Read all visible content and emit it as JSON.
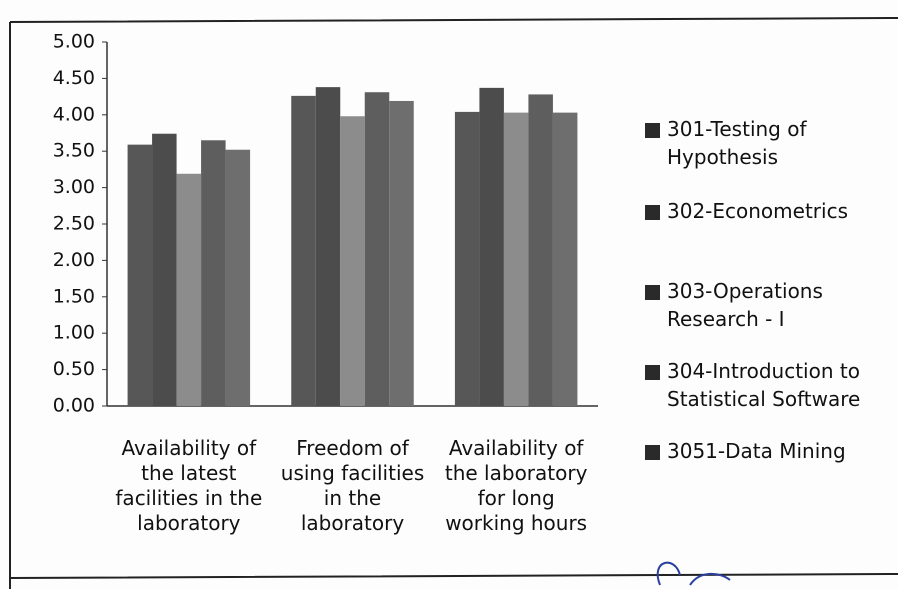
{
  "chart_data": {
    "type": "bar",
    "categories": [
      "Availability of\nthe latest\nfacilities in the\nlaboratory",
      "Freedom of\nusing facilities\nin the\nlaboratory",
      "Availability of\nthe laboratory\nfor long\nworking hours"
    ],
    "series": [
      {
        "name": "301-Testing of\nHypothesis",
        "color": "#575757",
        "values": [
          3.59,
          4.26,
          4.04
        ]
      },
      {
        "name": "302-Econometrics",
        "color": "#4c4c4c",
        "values": [
          3.74,
          4.38,
          4.37
        ]
      },
      {
        "name": "303-Operations\nResearch - I",
        "color": "#8c8c8c",
        "values": [
          3.19,
          3.98,
          4.03
        ]
      },
      {
        "name": "304-Introduction to\nStatistical Software",
        "color": "#5e5e5e",
        "values": [
          3.65,
          4.31,
          4.28
        ]
      },
      {
        "name": "3051-Data Mining",
        "color": "#6e6e6e",
        "values": [
          3.52,
          4.19,
          4.03
        ]
      }
    ],
    "ylim": [
      0,
      5
    ],
    "yticks": [
      {
        "value": 0,
        "label": "0.00"
      },
      {
        "value": 0.5,
        "label": "0.50"
      },
      {
        "value": 1,
        "label": "1.00"
      },
      {
        "value": 1.5,
        "label": "1.50"
      },
      {
        "value": 2,
        "label": "2.00"
      },
      {
        "value": 2.5,
        "label": "2.50"
      },
      {
        "value": 3,
        "label": "3.00"
      },
      {
        "value": 3.5,
        "label": "3.50"
      },
      {
        "value": 4,
        "label": "4.00"
      },
      {
        "value": 4.5,
        "label": "4.50"
      },
      {
        "value": 5,
        "label": "5.00"
      }
    ],
    "grid": false,
    "legend": "right"
  }
}
